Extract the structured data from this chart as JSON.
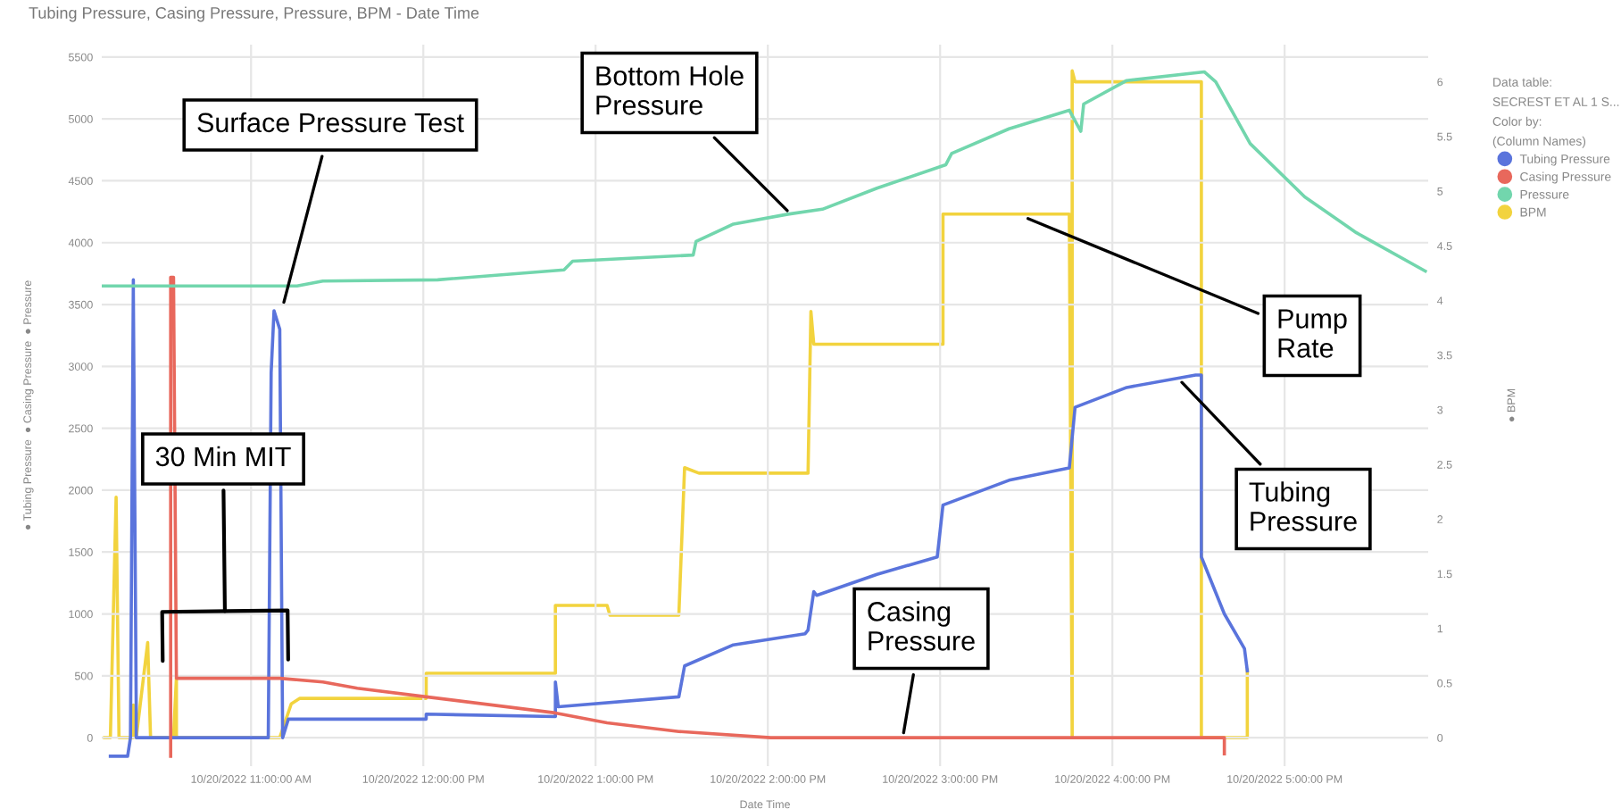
{
  "chart_data": {
    "type": "line",
    "title": "Tubing Pressure, Casing Pressure, Pressure, BPM - Date Time",
    "xlabel": "Date Time",
    "ylabel": "● Tubing Pressure  ● Casing Pressure  ● Pressure",
    "y2label": "● BPM",
    "legend_title": "Data table:\nSECREST ET AL 1 S...\nColor by:\n(Column Names)",
    "legend": "right",
    "grid": true,
    "marker": "none",
    "line_style": "solid",
    "xlim": [
      "2022-10-20T10:08",
      "2022-10-20T17:50"
    ],
    "xticks": [
      {
        "value": "2022-10-20T11:00",
        "label": "10/20/2022 11:00:00 AM"
      },
      {
        "value": "2022-10-20T12:00",
        "label": "10/20/2022 12:00:00 PM"
      },
      {
        "value": "2022-10-20T13:00",
        "label": "10/20/2022 1:00:00 PM"
      },
      {
        "value": "2022-10-20T14:00",
        "label": "10/20/2022 2:00:00 PM"
      },
      {
        "value": "2022-10-20T15:00",
        "label": "10/20/2022 3:00:00 PM"
      },
      {
        "value": "2022-10-20T16:00",
        "label": "10/20/2022 4:00:00 PM"
      },
      {
        "value": "2022-10-20T17:00",
        "label": "10/20/2022 5:00:00 PM"
      }
    ],
    "ylim": [
      -230,
      5600
    ],
    "yticks": [
      0,
      500,
      1000,
      1500,
      2000,
      2500,
      3000,
      3500,
      4000,
      4500,
      5000,
      5500
    ],
    "y2lim": [
      -0.26,
      6.34
    ],
    "y2ticks": [
      0,
      0.5,
      1,
      1.5,
      2,
      2.5,
      3,
      3.5,
      4,
      4.5,
      5,
      5.5,
      6
    ],
    "series": [
      {
        "name": "Tubing Pressure",
        "color": "#5a74dc",
        "x": [
          "2022-10-20T10:11",
          "2022-10-20T10:17",
          "2022-10-20T10:18",
          "2022-10-20T10:19",
          "2022-10-20T10:19",
          "2022-10-20T10:20",
          "2022-10-20T10:20",
          "2022-10-20T11:06",
          "2022-10-20T11:07",
          "2022-10-20T11:08",
          "2022-10-20T11:10",
          "2022-10-20T11:11",
          "2022-10-20T11:13",
          "2022-10-20T11:16",
          "2022-10-20T12:01",
          "2022-10-20T12:01",
          "2022-10-20T12:46",
          "2022-10-20T12:46",
          "2022-10-20T12:47",
          "2022-10-20T13:29",
          "2022-10-20T13:31",
          "2022-10-20T13:48",
          "2022-10-20T14:13",
          "2022-10-20T14:14",
          "2022-10-20T14:16",
          "2022-10-20T14:17",
          "2022-10-20T14:38",
          "2022-10-20T14:59",
          "2022-10-20T15:01",
          "2022-10-20T15:24",
          "2022-10-20T15:45",
          "2022-10-20T15:47",
          "2022-10-20T16:05",
          "2022-10-20T16:29",
          "2022-10-20T16:31",
          "2022-10-20T16:31",
          "2022-10-20T16:39",
          "2022-10-20T16:46",
          "2022-10-20T16:47"
        ],
        "values": [
          -150,
          -150,
          0,
          3700,
          3600,
          250,
          0,
          0,
          2950,
          3450,
          3300,
          0,
          150,
          150,
          150,
          190,
          170,
          450,
          250,
          330,
          580,
          750,
          840,
          870,
          1180,
          1150,
          1320,
          1460,
          1880,
          2080,
          2180,
          2670,
          2830,
          2930,
          2930,
          1460,
          1000,
          720,
          540
        ]
      },
      {
        "name": "Casing Pressure",
        "color": "#e8685c",
        "x": [
          "2022-10-20T10:32",
          "2022-10-20T10:32",
          "2022-10-20T10:33",
          "2022-10-20T10:34",
          "2022-10-20T11:10",
          "2022-10-20T11:25",
          "2022-10-20T11:37",
          "2022-10-20T12:01",
          "2022-10-20T12:46",
          "2022-10-20T13:04",
          "2022-10-20T13:29",
          "2022-10-20T14:01",
          "2022-10-20T16:39",
          "2022-10-20T16:39"
        ],
        "values": [
          -150,
          3720,
          3720,
          480,
          480,
          450,
          400,
          330,
          200,
          120,
          50,
          0,
          0,
          -130
        ]
      },
      {
        "name": "Pressure",
        "color": "#72d6ad",
        "x": [
          "2022-10-20T10:08",
          "2022-10-20T11:16",
          "2022-10-20T11:25",
          "2022-10-20T12:05",
          "2022-10-20T12:49",
          "2022-10-20T12:52",
          "2022-10-20T13:34",
          "2022-10-20T13:35",
          "2022-10-20T13:48",
          "2022-10-20T14:07",
          "2022-10-20T14:19",
          "2022-10-20T14:38",
          "2022-10-20T15:02",
          "2022-10-20T15:04",
          "2022-10-20T15:24",
          "2022-10-20T15:45",
          "2022-10-20T15:49",
          "2022-10-20T15:50",
          "2022-10-20T16:05",
          "2022-10-20T16:32",
          "2022-10-20T16:36",
          "2022-10-20T16:48",
          "2022-10-20T17:07",
          "2022-10-20T17:25",
          "2022-10-20T17:49"
        ],
        "values": [
          3650,
          3650,
          3690,
          3700,
          3780,
          3850,
          3900,
          4010,
          4150,
          4230,
          4270,
          4440,
          4630,
          4720,
          4920,
          5070,
          4900,
          5120,
          5310,
          5380,
          5300,
          4800,
          4370,
          4080,
          3770
        ]
      },
      {
        "name": "BPM",
        "color": "#f2d33e",
        "axis": "y2",
        "x": [
          "2022-10-20T10:09",
          "2022-10-20T10:11",
          "2022-10-20T10:13",
          "2022-10-20T10:14",
          "2022-10-20T10:19",
          "2022-10-20T10:19",
          "2022-10-20T10:20",
          "2022-10-20T10:24",
          "2022-10-20T10:25",
          "2022-10-20T10:33",
          "2022-10-20T10:34",
          "2022-10-20T10:34",
          "2022-10-20T11:10",
          "2022-10-20T11:14",
          "2022-10-20T11:17",
          "2022-10-20T12:01",
          "2022-10-20T12:01",
          "2022-10-20T12:46",
          "2022-10-20T12:46",
          "2022-10-20T13:04",
          "2022-10-20T13:05",
          "2022-10-20T13:29",
          "2022-10-20T13:31",
          "2022-10-20T13:36",
          "2022-10-20T14:14",
          "2022-10-20T14:15",
          "2022-10-20T14:16",
          "2022-10-20T15:01",
          "2022-10-20T15:01",
          "2022-10-20T15:45",
          "2022-10-20T15:46",
          "2022-10-20T15:46",
          "2022-10-20T15:47",
          "2022-10-20T16:31",
          "2022-10-20T16:31",
          "2022-10-20T16:47",
          "2022-10-20T16:47"
        ],
        "values": [
          0,
          0,
          2.2,
          0,
          0,
          0.3,
          0,
          0.87,
          0,
          0,
          0.55,
          0,
          0,
          0.31,
          0.36,
          0.36,
          0.59,
          0.59,
          1.21,
          1.21,
          1.12,
          1.12,
          2.47,
          2.42,
          2.42,
          3.9,
          3.6,
          3.6,
          4.79,
          4.79,
          0,
          6.1,
          6.0,
          6.0,
          0,
          0,
          0.62
        ]
      }
    ],
    "annotations": [
      {
        "text": "Surface Pressure Test",
        "x": "2022-10-20T11:11",
        "y": 3480
      },
      {
        "text": "Bottom Hole Pressure",
        "x": "2022-10-20T14:08",
        "y": 4230
      },
      "30 Min MIT",
      {
        "text": "Pump Rate",
        "x": "2022-10-20T15:29",
        "y": 4210
      },
      {
        "text": "Tubing Pressure",
        "x": "2022-10-20T16:23",
        "y": 2900
      },
      {
        "text": "Casing Pressure",
        "x": "2022-10-20T14:47",
        "y": 0
      }
    ]
  }
}
